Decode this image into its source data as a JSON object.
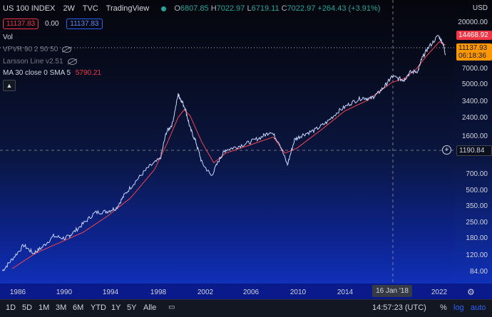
{
  "header": {
    "symbol": "US 100 INDEX",
    "interval": "2W",
    "exchange": "TVC",
    "provider": "TradingView",
    "ohlc": {
      "o": "6807.85",
      "h": "7022.97",
      "l": "6719.11",
      "c": "7022.97",
      "change": "+264.43 (+3.91%)"
    },
    "bid": "11137.83",
    "spread": "0.00",
    "ask": "11137.83"
  },
  "indicators": {
    "vol": "Vol",
    "vpvr": "VPVR 90 2 50 50",
    "larsson": "Larsson Line v2.51",
    "ma_label": "MA 30 close 0 SMA 5",
    "ma_value": "5790.21",
    "collapse_icon": "chevron-up-icon"
  },
  "price_axis": {
    "currency": "USD",
    "labels": [
      "20000.00",
      "14468.92",
      "11137.93",
      "06:18:36",
      "7000.00",
      "5000.00",
      "3400.00",
      "2400.00",
      "1600.00",
      "1190.84",
      "700.00",
      "500.00",
      "350.00",
      "250.00",
      "180.00",
      "120.00",
      "84.00"
    ],
    "last_price": "14468.92",
    "current_price": "11137.93",
    "countdown": "06:18:36",
    "crosshair_price": "1190.84"
  },
  "time_axis": {
    "labels": [
      "1986",
      "1990",
      "1994",
      "1998",
      "2002",
      "2006",
      "2010",
      "2014",
      "2022"
    ],
    "crosshair_time": "16 Jan '18"
  },
  "toolbar": {
    "ranges": [
      "1D",
      "5D",
      "1M",
      "3M",
      "6M",
      "YTD",
      "1Y",
      "5Y",
      "Alle"
    ],
    "time": "14:57:23 (UTC)",
    "percent": "%",
    "log": "log",
    "auto": "auto"
  },
  "chart_data": {
    "type": "line",
    "title": "US 100 INDEX",
    "scale": "log",
    "ylim": [
      84,
      26000
    ],
    "xlim": [
      1985,
      2023.3
    ],
    "series": [
      {
        "x": [
          1985.2,
          1986,
          1987,
          1987.8,
          1988.5,
          1989.5,
          1990.5,
          1991,
          1992,
          1993,
          1994,
          1994.8,
          1995.5,
          1996.5,
          1997.5,
          1998.5,
          1999,
          1999.5,
          2000,
          2000.2,
          2000.6,
          2001,
          2001.5,
          2002,
          2002.8,
          2003.5,
          2004,
          2005,
          2006,
          2007,
          2007.8,
          2008.5,
          2009.2,
          2009.8,
          2010.5,
          2011.5,
          2012.5,
          2013.5,
          2014.5,
          2015.5,
          2016.2,
          2016.8,
          2017.5,
          2018.0,
          2018.8,
          2019.0,
          2019.5,
          2020.2,
          2020.5,
          2021,
          2021.9,
          2022.3,
          2022.5
        ],
        "y": [
          110,
          140,
          190,
          160,
          180,
          230,
          220,
          240,
          300,
          380,
          390,
          420,
          560,
          760,
          1000,
          1200,
          2100,
          2500,
          4700,
          4300,
          3500,
          2300,
          1700,
          1100,
          830,
          1200,
          1450,
          1550,
          1700,
          1900,
          2150,
          1700,
          1050,
          1800,
          2000,
          2200,
          2600,
          3300,
          3900,
          4400,
          4300,
          4800,
          5800,
          6900,
          6500,
          6400,
          7500,
          7800,
          10000,
          12500,
          16500,
          14000,
          11100
        ]
      },
      {
        "name": "MA 30 close 0 SMA 5",
        "x": [
          1986,
          1988,
          1990,
          1992,
          1994,
          1996,
          1998,
          1999,
          2000,
          2000.5,
          2001,
          2002,
          2003,
          2004,
          2006,
          2008,
          2009,
          2010,
          2012,
          2014,
          2016,
          2018,
          2019,
          2020,
          2021,
          2022,
          2022.5
        ],
        "y": [
          115,
          160,
          200,
          250,
          350,
          520,
          950,
          1600,
          2900,
          3400,
          3000,
          1700,
          1100,
          1350,
          1600,
          1900,
          1350,
          1500,
          2200,
          3300,
          4200,
          6100,
          6600,
          8000,
          11000,
          14500,
          13500
        ]
      }
    ]
  }
}
